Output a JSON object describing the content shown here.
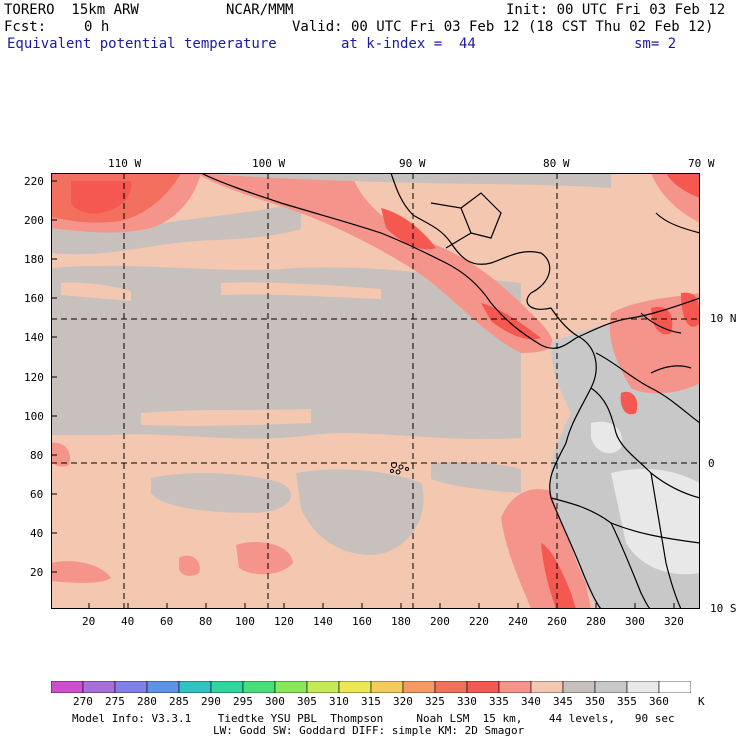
{
  "header": {
    "model": "TORERO  15km ARW",
    "center": "NCAR/MMM",
    "init": "Init: 00 UTC Fri 03 Feb 12",
    "fcst_label": "Fcst:",
    "fcst_value": "0 h",
    "valid": "Valid: 00 UTC Fri 03 Feb 12 (18 CST Thu 02 Feb 12)",
    "field": "Equivalent potential temperature",
    "kindex": "at k-index =  44",
    "sm": "sm= 2"
  },
  "map": {
    "lon_labels_top": [
      "110 W",
      "100 W",
      "90 W",
      "80 W",
      "70 W"
    ],
    "lat_labels_right": [
      "10 N",
      "0",
      "10 S"
    ],
    "y_ticks": [
      "220",
      "200",
      "180",
      "160",
      "140",
      "120",
      "100",
      "80",
      "60",
      "40",
      "20"
    ],
    "x_ticks": [
      "20",
      "40",
      "60",
      "80",
      "100",
      "120",
      "140",
      "160",
      "180",
      "200",
      "220",
      "240",
      "260",
      "280",
      "300",
      "320"
    ]
  },
  "colorbar": {
    "unit": "K",
    "labels": [
      "270",
      "275",
      "280",
      "285",
      "290",
      "295",
      "300",
      "305",
      "310",
      "315",
      "320",
      "325",
      "330",
      "335",
      "340",
      "345",
      "350",
      "355",
      "360"
    ],
    "colors": [
      "#cc4fcc",
      "#a86fd6",
      "#8080e6",
      "#5e93e6",
      "#2ec4c4",
      "#2ed6a0",
      "#46e07a",
      "#8ae65c",
      "#c4ec52",
      "#ece852",
      "#f4cc5a",
      "#f49a64",
      "#f4705e",
      "#f45850",
      "#f4948a",
      "#f4c8b0",
      "#c8c0bc",
      "#c8c8c8",
      "#e8e8e8",
      "#ffffff"
    ]
  },
  "footer": {
    "line1": "Model Info: V3.3.1    Tiedtke YSU PBL  Thompson     Noah LSM  15 km,    44 levels,   90 sec",
    "line2": "LW: Godd SW: Goddard DIFF: simple KM: 2D Smagor"
  }
}
